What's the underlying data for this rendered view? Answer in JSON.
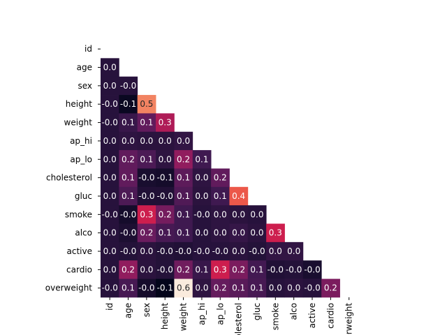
{
  "chart_data": {
    "type": "heatmap",
    "mask": "upper-triangle",
    "value_precision": 1,
    "colormap": "rocket",
    "vmin": -0.1,
    "vmax": 0.6,
    "row_labels": [
      "id",
      "age",
      "sex",
      "height",
      "weight",
      "ap_hi",
      "ap_lo",
      "cholesterol",
      "gluc",
      "smoke",
      "alco",
      "active",
      "cardio",
      "overweight"
    ],
    "col_labels": [
      "id",
      "age",
      "sex",
      "height",
      "weight",
      "ap_hi",
      "ap_lo",
      "cholesterol",
      "gluc",
      "smoke",
      "alco",
      "active",
      "cardio",
      "overweight"
    ],
    "cell_text": [
      [],
      [
        "0.0"
      ],
      [
        "0.0",
        "-0.0"
      ],
      [
        "-0.0",
        "-0.1",
        "0.5"
      ],
      [
        "-0.0",
        "0.1",
        "0.1",
        "0.3"
      ],
      [
        "0.0",
        "0.0",
        "0.0",
        "0.0",
        "0.0"
      ],
      [
        "0.0",
        "0.2",
        "0.1",
        "0.0",
        "0.2",
        "0.1"
      ],
      [
        "0.0",
        "0.1",
        "-0.0",
        "-0.1",
        "0.1",
        "0.0",
        "0.2"
      ],
      [
        "0.0",
        "0.1",
        "-0.0",
        "-0.0",
        "0.1",
        "0.0",
        "0.1",
        "0.4"
      ],
      [
        "-0.0",
        "-0.0",
        "0.3",
        "0.2",
        "0.1",
        "-0.0",
        "0.0",
        "0.0",
        "0.0"
      ],
      [
        "0.0",
        "-0.0",
        "0.2",
        "0.1",
        "0.1",
        "0.0",
        "0.0",
        "0.0",
        "0.0",
        "0.3"
      ],
      [
        "0.0",
        "-0.0",
        "0.0",
        "-0.0",
        "-0.0",
        "-0.0",
        "-0.0",
        "0.0",
        "-0.0",
        "0.0",
        "0.0"
      ],
      [
        "0.0",
        "0.2",
        "0.0",
        "-0.0",
        "0.2",
        "0.1",
        "0.3",
        "0.2",
        "0.1",
        "-0.0",
        "-0.0",
        "-0.0"
      ],
      [
        "-0.0",
        "0.1",
        "-0.0",
        "-0.1",
        "0.6",
        "0.0",
        "0.2",
        "0.1",
        "0.1",
        "0.0",
        "0.0",
        "-0.0",
        "0.2"
      ]
    ],
    "values": [
      [],
      [
        0.0
      ],
      [
        0.0,
        -0.0
      ],
      [
        -0.0,
        -0.08,
        0.5
      ],
      [
        -0.0,
        0.05,
        0.15,
        0.29
      ],
      [
        0.0,
        0.02,
        0.01,
        0.01,
        0.03
      ],
      [
        0.0,
        0.15,
        0.1,
        0.02,
        0.24,
        0.07
      ],
      [
        0.0,
        0.15,
        -0.04,
        -0.05,
        0.14,
        0.02,
        0.15
      ],
      [
        0.0,
        0.1,
        -0.02,
        -0.02,
        0.11,
        0.01,
        0.07,
        0.45
      ],
      [
        -0.0,
        -0.05,
        0.34,
        0.19,
        0.07,
        -0.0,
        0.02,
        0.01,
        -0.0
      ],
      [
        0.0,
        -0.03,
        0.17,
        0.09,
        0.07,
        0.0,
        0.02,
        0.04,
        0.01,
        0.34
      ],
      [
        0.0,
        -0.01,
        0.01,
        -0.01,
        -0.02,
        -0.0,
        -0.0,
        0.01,
        -0.01,
        0.03,
        0.03
      ],
      [
        0.0,
        0.24,
        0.01,
        -0.01,
        0.18,
        0.05,
        0.34,
        0.2,
        0.08,
        -0.02,
        -0.01,
        -0.04
      ],
      [
        -0.0,
        0.09,
        -0.05,
        -0.14,
        0.64,
        0.02,
        0.16,
        0.13,
        0.09,
        -0.0,
        0.01,
        -0.0,
        0.2
      ]
    ]
  }
}
